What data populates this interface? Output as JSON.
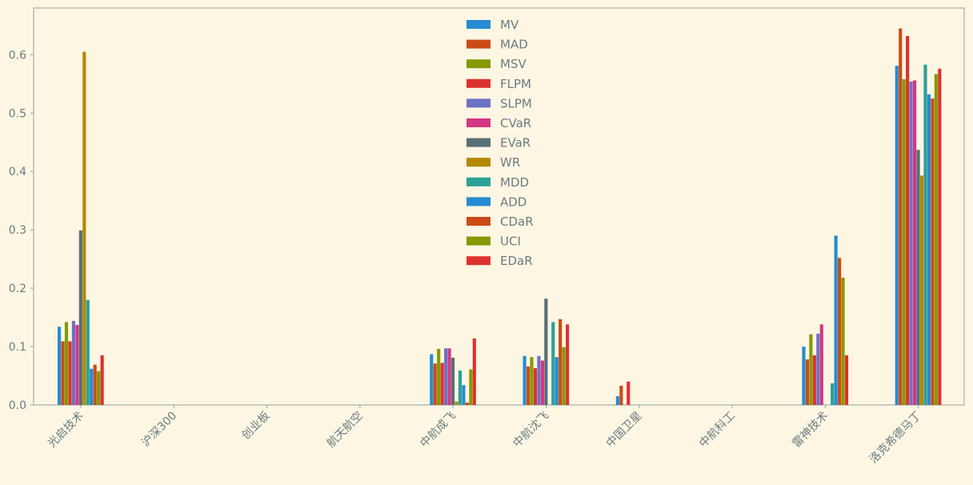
{
  "chart_data": {
    "type": "bar",
    "categories": [
      "光启技术",
      "沪深300",
      "创业板",
      "航天航空",
      "中航成飞",
      "中航沈飞",
      "中国卫星",
      "中航科工",
      "雷神技术",
      "洛克希德马丁"
    ],
    "ylim": [
      0,
      0.68
    ],
    "yticks": [
      "0.0",
      "0.1",
      "0.2",
      "0.3",
      "0.4",
      "0.5",
      "0.6"
    ],
    "ytick_values": [
      0,
      0.1,
      0.2,
      0.3,
      0.4,
      0.5,
      0.6
    ],
    "grid": false,
    "legend_position": "top-center",
    "series": [
      {
        "name": "MV",
        "color": "#268bd2",
        "values": [
          0.134,
          0,
          0,
          0,
          0.087,
          0.084,
          0.015,
          0,
          0.1,
          0.581
        ]
      },
      {
        "name": "MAD",
        "color": "#cb4b16",
        "values": [
          0.109,
          0,
          0,
          0,
          0.071,
          0.066,
          0.033,
          0,
          0.078,
          0.645
        ]
      },
      {
        "name": "MSV",
        "color": "#859900",
        "values": [
          0.142,
          0,
          0,
          0,
          0.096,
          0.082,
          0,
          0,
          0.121,
          0.558
        ]
      },
      {
        "name": "FLPM",
        "color": "#dc322f",
        "values": [
          0.109,
          0,
          0,
          0,
          0.072,
          0.063,
          0.04,
          0,
          0.085,
          0.632
        ]
      },
      {
        "name": "SLPM",
        "color": "#6c71c4",
        "values": [
          0.144,
          0,
          0,
          0,
          0.097,
          0.084,
          0,
          0,
          0.122,
          0.554
        ]
      },
      {
        "name": "CVaR",
        "color": "#d33682",
        "values": [
          0.137,
          0,
          0,
          0,
          0.097,
          0.076,
          0,
          0,
          0.138,
          0.556
        ]
      },
      {
        "name": "EVaR",
        "color": "#586e75",
        "values": [
          0.299,
          0,
          0,
          0,
          0.081,
          0.182,
          0,
          0,
          0,
          0.437
        ]
      },
      {
        "name": "WR",
        "color": "#b58900",
        "values": [
          0.605,
          0,
          0,
          0,
          0.006,
          0,
          0,
          0,
          0,
          0.393
        ]
      },
      {
        "name": "MDD",
        "color": "#2aa198",
        "values": [
          0.18,
          0,
          0,
          0,
          0.059,
          0.142,
          0,
          0,
          0.037,
          0.583
        ]
      },
      {
        "name": "ADD",
        "color": "#268bd2",
        "values": [
          0.062,
          0,
          0,
          0,
          0.034,
          0.082,
          0,
          0,
          0.29,
          0.532
        ]
      },
      {
        "name": "CDaR",
        "color": "#cb4b16",
        "values": [
          0.069,
          0,
          0,
          0,
          0.004,
          0.147,
          0,
          0,
          0.252,
          0.525
        ]
      },
      {
        "name": "UCI",
        "color": "#859900",
        "values": [
          0.058,
          0,
          0,
          0,
          0.061,
          0.099,
          0,
          0,
          0.218,
          0.567
        ]
      },
      {
        "name": "EDaR",
        "color": "#dc322f",
        "values": [
          0.085,
          0,
          0,
          0,
          0.114,
          0.138,
          0,
          0,
          0.085,
          0.576
        ]
      }
    ]
  }
}
